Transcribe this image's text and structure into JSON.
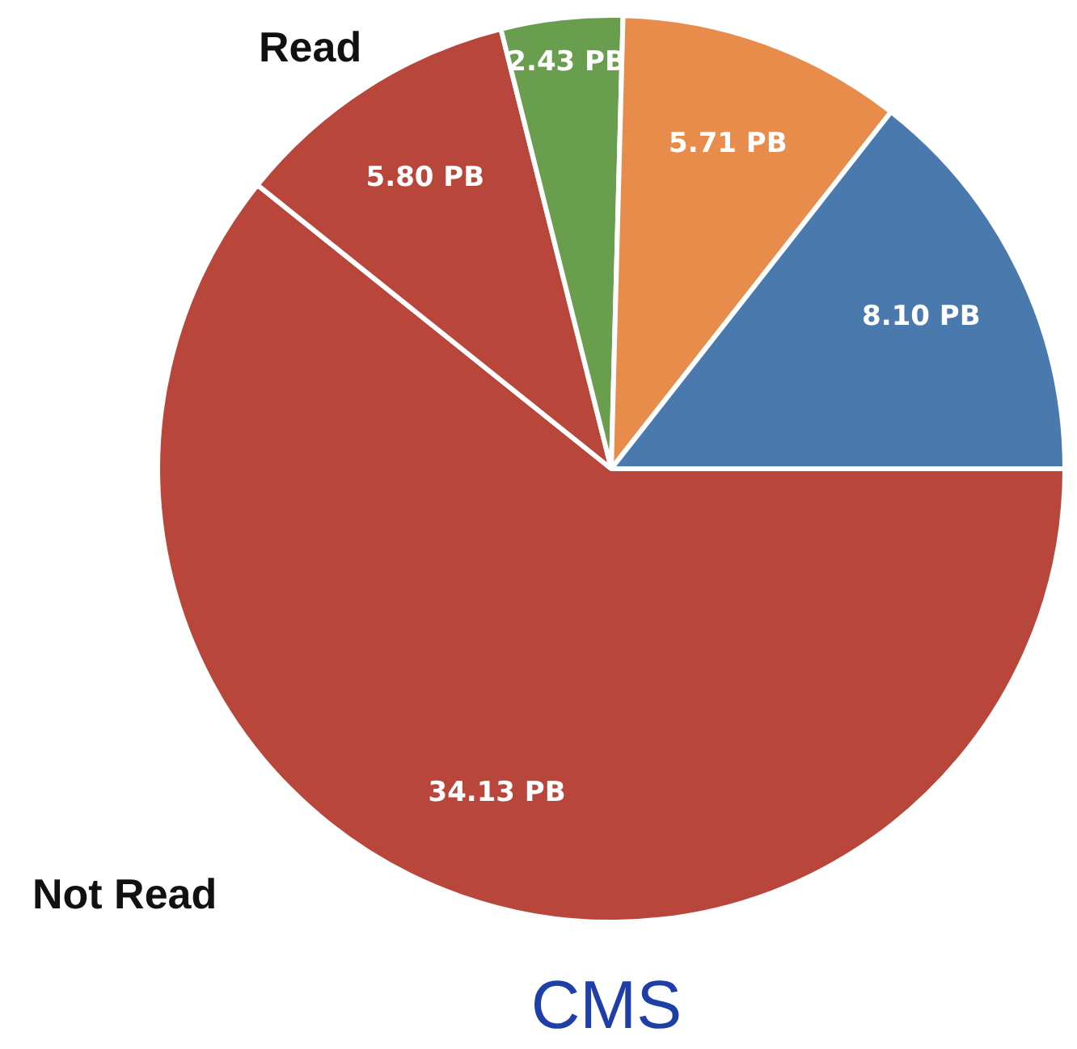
{
  "chart_data": {
    "type": "pie",
    "title": "CMS",
    "categories": [
      null,
      null,
      null,
      null,
      null
    ],
    "values": [
      34.13,
      5.8,
      2.43,
      5.71,
      8.1
    ],
    "colors": [
      "#b9463b",
      "#b9463b",
      "#6a9e4f",
      "#e88c4c",
      "#4a79ad"
    ],
    "value_labels": [
      "34.13 PB",
      "5.80 PB",
      "2.43 PB",
      "5.71 PB",
      "8.10 PB"
    ],
    "annotations": [
      "Read",
      "Not Read"
    ],
    "legend": false
  }
}
